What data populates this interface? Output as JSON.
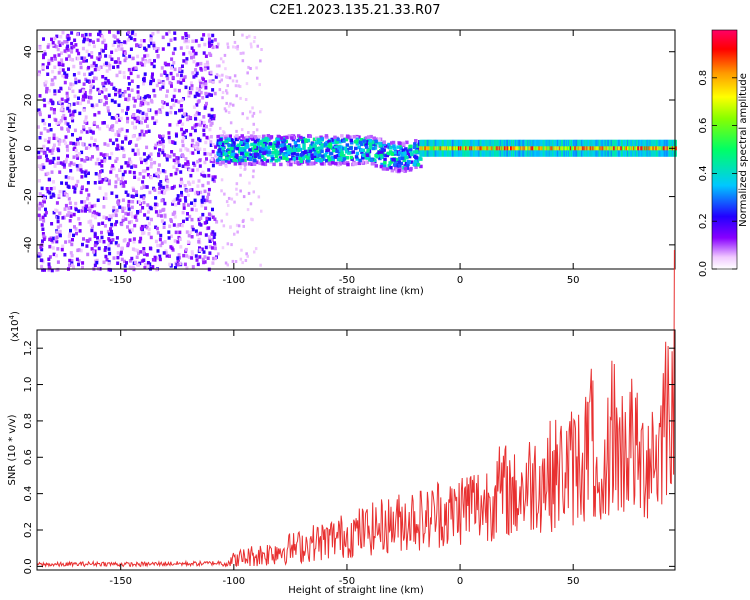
{
  "figure_title": "C2E1.2023.135.21.33.R07",
  "chart_data": [
    {
      "type": "heatmap",
      "title": "",
      "xlabel": "Height of straight line (km)",
      "ylabel": "Frequency (Hz)",
      "xlim": [
        -187,
        95
      ],
      "ylim": [
        -50,
        49
      ],
      "xticks": [
        -150,
        -100,
        -50,
        0,
        50
      ],
      "yticks": [
        -40,
        -20,
        0,
        20,
        40
      ],
      "colorbar": {
        "label": "Normalized spectral amplitude",
        "range": [
          0.0,
          1.0
        ],
        "ticks": [
          0.0,
          0.2,
          0.4,
          0.6,
          0.8
        ],
        "colors": [
          "#ffffff",
          "#f0c8ff",
          "#8800ff",
          "#3300ff",
          "#00c8ff",
          "#00ff66",
          "#ccff00",
          "#ff9900",
          "#ff0000",
          "#ff0066"
        ]
      },
      "regions": [
        {
          "x_range": [
            -187,
            -108
          ],
          "freq_range": [
            -50,
            49
          ],
          "amplitude": 0.1,
          "description_kind": "scattered noise"
        },
        {
          "x_range": [
            -108,
            -18
          ],
          "freq_center": 0,
          "freq_halfwidth": 6,
          "amplitude": 0.3
        },
        {
          "x_range": [
            -18,
            95
          ],
          "freq_center": 0,
          "freq_halfwidth": 2,
          "amplitude": 0.95
        }
      ]
    },
    {
      "type": "line",
      "title": "",
      "xlabel": "Height of straight line (km)",
      "ylabel": "SNR (10 * v/v)",
      "y_multiplier_label": "(x10",
      "y_multiplier_exp": "4",
      "y_multiplier_close": ")",
      "xlim": [
        -187,
        95
      ],
      "ylim": [
        -0.02,
        1.3
      ],
      "xticks": [
        -150,
        -100,
        -50,
        0,
        50
      ],
      "yticks": [
        0.0,
        0.2,
        0.4,
        0.6,
        0.8,
        1.0,
        1.2
      ],
      "series": [
        {
          "color": "#e83030",
          "x": [
            -187,
            -175,
            -160,
            -145,
            -130,
            -115,
            -105,
            -100,
            -95,
            -90,
            -85,
            -80,
            -75,
            -70,
            -65,
            -60,
            -55,
            -50,
            -45,
            -40,
            -35,
            -30,
            -25,
            -20,
            -15,
            -10,
            -5,
            0,
            5,
            10,
            15,
            20,
            25,
            30,
            35,
            40,
            45,
            50,
            55,
            58,
            60,
            62,
            65,
            68,
            70,
            75,
            80,
            85,
            88,
            90,
            92,
            94,
            95
          ],
          "y": [
            0.01,
            0.01,
            0.015,
            0.01,
            0.015,
            0.015,
            0.02,
            0.03,
            0.05,
            0.06,
            0.07,
            0.09,
            0.1,
            0.11,
            0.13,
            0.14,
            0.16,
            0.17,
            0.19,
            0.2,
            0.22,
            0.23,
            0.25,
            0.27,
            0.25,
            0.3,
            0.28,
            0.32,
            0.35,
            0.33,
            0.4,
            0.42,
            0.38,
            0.45,
            0.48,
            0.5,
            0.52,
            0.55,
            0.6,
            0.75,
            0.45,
            0.22,
            0.6,
            0.8,
            0.6,
            0.7,
            0.55,
            0.65,
            0.6,
            0.85,
            0.92,
            1.0,
            1.2
          ]
        }
      ]
    }
  ]
}
